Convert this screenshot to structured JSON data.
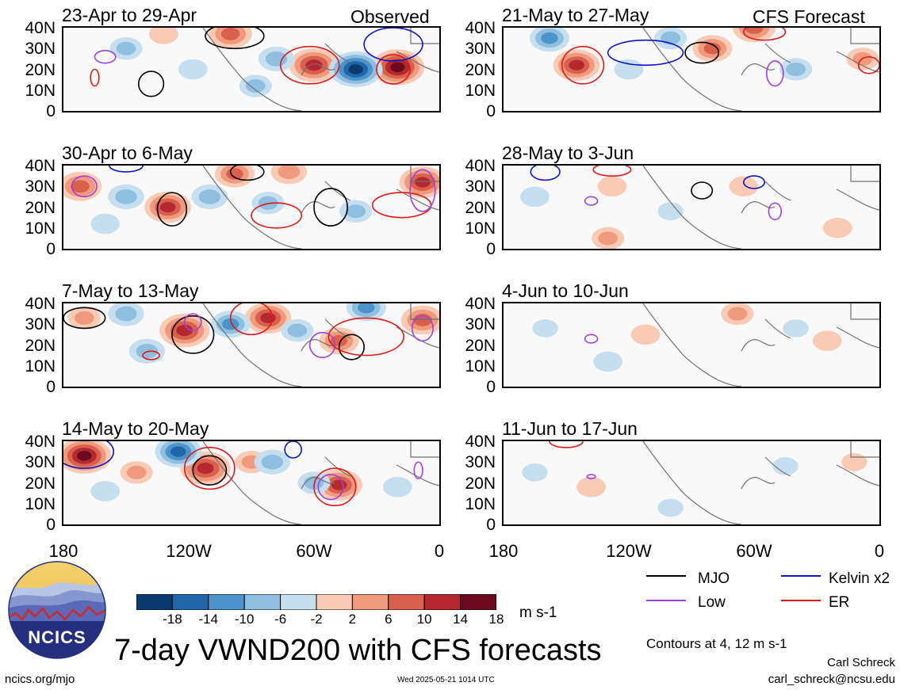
{
  "header": {
    "left_label": "Observed",
    "right_label": "CFS Forecast"
  },
  "colors": {
    "neg": [
      "#0b3a6e",
      "#1f66aa",
      "#4a94c9",
      "#8fbfdf",
      "#c6dff0"
    ],
    "pos": [
      "#f9cbb4",
      "#f09a7d",
      "#d9604c",
      "#b52830",
      "#6e0a1f"
    ],
    "mjo": "#000000",
    "kelvin": "#0a14c8",
    "low": "#a040e0",
    "er": "#e01818",
    "coast": "#707070"
  },
  "panels": [
    {
      "id": "p1",
      "title": "23-Apr to 29-Apr",
      "column": "observed",
      "blobs": [
        {
          "lon": -20,
          "lat": 21,
          "v": 18
        },
        {
          "lon": -60,
          "lat": 22,
          "v": 16
        },
        {
          "lon": -40,
          "lat": 20,
          "v": -18
        },
        {
          "lon": -100,
          "lat": 37,
          "v": 12
        },
        {
          "lon": -78,
          "lat": 25,
          "v": -8
        },
        {
          "lon": -150,
          "lat": 30,
          "v": -6
        },
        {
          "lon": -118,
          "lat": 20,
          "v": -4
        },
        {
          "lon": -88,
          "lat": 12,
          "v": -6
        },
        {
          "lon": -132,
          "lat": 37,
          "v": 4
        }
      ],
      "contours": [
        {
          "t": "mjo",
          "lon": -138,
          "lat": 13,
          "rx": 6,
          "ry": 6
        },
        {
          "t": "mjo",
          "lon": -98,
          "lat": 36,
          "rx": 14,
          "ry": 6
        },
        {
          "t": "er",
          "lon": -62,
          "lat": 22,
          "rx": 14,
          "ry": 9
        },
        {
          "t": "er",
          "lon": -22,
          "lat": 20,
          "rx": 8,
          "ry": 7
        },
        {
          "t": "low",
          "lon": -160,
          "lat": 26,
          "rx": 5,
          "ry": 3
        },
        {
          "t": "kelvin",
          "lon": -22,
          "lat": 32,
          "rx": 14,
          "ry": 8
        },
        {
          "t": "er",
          "lon": -165,
          "lat": 16,
          "rx": 2,
          "ry": 4
        }
      ]
    },
    {
      "id": "p2",
      "title": "30-Apr to 6-May",
      "column": "observed",
      "blobs": [
        {
          "lon": -172,
          "lat": 30,
          "v": 12
        },
        {
          "lon": -130,
          "lat": 20,
          "v": 14
        },
        {
          "lon": -98,
          "lat": 36,
          "v": 10
        },
        {
          "lon": -72,
          "lat": 37,
          "v": 8
        },
        {
          "lon": -8,
          "lat": 32,
          "v": 14
        },
        {
          "lon": -150,
          "lat": 25,
          "v": -8
        },
        {
          "lon": -110,
          "lat": 25,
          "v": -8
        },
        {
          "lon": -82,
          "lat": 22,
          "v": -6
        },
        {
          "lon": -40,
          "lat": 18,
          "v": -6
        },
        {
          "lon": -160,
          "lat": 12,
          "v": -4
        }
      ],
      "contours": [
        {
          "t": "low",
          "lon": -170,
          "lat": 30,
          "rx": 6,
          "ry": 5
        },
        {
          "t": "mjo",
          "lon": -128,
          "lat": 19,
          "rx": 7,
          "ry": 8
        },
        {
          "t": "er",
          "lon": -78,
          "lat": 16,
          "rx": 12,
          "ry": 6
        },
        {
          "t": "mjo",
          "lon": -52,
          "lat": 20,
          "rx": 8,
          "ry": 9
        },
        {
          "t": "er",
          "lon": -18,
          "lat": 21,
          "rx": 14,
          "ry": 6
        },
        {
          "t": "low",
          "lon": -8,
          "lat": 28,
          "rx": 6,
          "ry": 10
        },
        {
          "t": "mjo",
          "lon": -92,
          "lat": 37,
          "rx": 8,
          "ry": 4
        },
        {
          "t": "kelvin",
          "lon": -150,
          "lat": 40,
          "rx": 8,
          "ry": 3
        }
      ]
    },
    {
      "id": "p3",
      "title": "7-May to 13-May",
      "column": "observed",
      "blobs": [
        {
          "lon": -122,
          "lat": 27,
          "v": 16
        },
        {
          "lon": -82,
          "lat": 33,
          "v": 14
        },
        {
          "lon": -48,
          "lat": 22,
          "v": 10
        },
        {
          "lon": -8,
          "lat": 32,
          "v": 12
        },
        {
          "lon": -170,
          "lat": 33,
          "v": 6
        },
        {
          "lon": -150,
          "lat": 35,
          "v": -8
        },
        {
          "lon": -140,
          "lat": 17,
          "v": -8
        },
        {
          "lon": -100,
          "lat": 30,
          "v": -10
        },
        {
          "lon": -35,
          "lat": 38,
          "v": -10
        },
        {
          "lon": -68,
          "lat": 27,
          "v": -6
        }
      ],
      "contours": [
        {
          "t": "mjo",
          "lon": -118,
          "lat": 25,
          "rx": 10,
          "ry": 9
        },
        {
          "t": "er",
          "lon": -90,
          "lat": 33,
          "rx": 10,
          "ry": 8
        },
        {
          "t": "low",
          "lon": -56,
          "lat": 20,
          "rx": 6,
          "ry": 6
        },
        {
          "t": "mjo",
          "lon": -42,
          "lat": 19,
          "rx": 6,
          "ry": 6
        },
        {
          "t": "er",
          "lon": -35,
          "lat": 24,
          "rx": 18,
          "ry": 9
        },
        {
          "t": "low",
          "lon": -8,
          "lat": 28,
          "rx": 5,
          "ry": 6
        },
        {
          "t": "er",
          "lon": -138,
          "lat": 15,
          "rx": 4,
          "ry": 2
        },
        {
          "t": "low",
          "lon": -118,
          "lat": 31,
          "rx": 4,
          "ry": 4
        },
        {
          "t": "mjo",
          "lon": -170,
          "lat": 33,
          "rx": 10,
          "ry": 5
        }
      ]
    },
    {
      "id": "p4",
      "title": "14-May to 20-May",
      "column": "observed",
      "blobs": [
        {
          "lon": -170,
          "lat": 33,
          "v": 18
        },
        {
          "lon": -112,
          "lat": 27,
          "v": 16
        },
        {
          "lon": -48,
          "lat": 19,
          "v": 14
        },
        {
          "lon": -90,
          "lat": 30,
          "v": 6
        },
        {
          "lon": -145,
          "lat": 25,
          "v": 6
        },
        {
          "lon": -125,
          "lat": 35,
          "v": -14
        },
        {
          "lon": -80,
          "lat": 30,
          "v": -8
        },
        {
          "lon": -60,
          "lat": 20,
          "v": -6
        },
        {
          "lon": -160,
          "lat": 16,
          "v": -4
        },
        {
          "lon": -20,
          "lat": 18,
          "v": -4
        }
      ],
      "contours": [
        {
          "t": "mjo",
          "lon": -110,
          "lat": 26,
          "rx": 8,
          "ry": 7
        },
        {
          "t": "er",
          "lon": -110,
          "lat": 27,
          "rx": 12,
          "ry": 10
        },
        {
          "t": "er",
          "lon": -50,
          "lat": 18,
          "rx": 10,
          "ry": 9
        },
        {
          "t": "low",
          "lon": -52,
          "lat": 18,
          "rx": 6,
          "ry": 6
        },
        {
          "t": "kelvin",
          "lon": -170,
          "lat": 35,
          "rx": 14,
          "ry": 8
        },
        {
          "t": "kelvin",
          "lon": -70,
          "lat": 36,
          "rx": 4,
          "ry": 4
        },
        {
          "t": "low",
          "lon": -10,
          "lat": 26,
          "rx": 2,
          "ry": 4
        }
      ]
    },
    {
      "id": "p5",
      "title": "21-May to 27-May",
      "column": "forecast",
      "blobs": [
        {
          "lon": -145,
          "lat": 22,
          "v": 14
        },
        {
          "lon": -60,
          "lat": 40,
          "v": 12
        },
        {
          "lon": -8,
          "lat": 25,
          "v": 6
        },
        {
          "lon": -80,
          "lat": 30,
          "v": 10
        },
        {
          "lon": -158,
          "lat": 35,
          "v": -10
        },
        {
          "lon": -120,
          "lat": 20,
          "v": -4
        },
        {
          "lon": -40,
          "lat": 20,
          "v": -6
        },
        {
          "lon": -100,
          "lat": 35,
          "v": -6
        }
      ],
      "contours": [
        {
          "t": "er",
          "lon": -142,
          "lat": 22,
          "rx": 10,
          "ry": 9
        },
        {
          "t": "kelvin",
          "lon": -112,
          "lat": 28,
          "rx": 18,
          "ry": 6
        },
        {
          "t": "mjo",
          "lon": -85,
          "lat": 28,
          "rx": 8,
          "ry": 5
        },
        {
          "t": "low",
          "lon": -50,
          "lat": 18,
          "rx": 4,
          "ry": 6
        },
        {
          "t": "er",
          "lon": -55,
          "lat": 38,
          "rx": 10,
          "ry": 4
        },
        {
          "t": "er",
          "lon": -5,
          "lat": 22,
          "rx": 5,
          "ry": 4
        }
      ]
    },
    {
      "id": "p6",
      "title": "28-May to 3-Jun",
      "column": "forecast",
      "blobs": [
        {
          "lon": -130,
          "lat": 5,
          "v": 6
        },
        {
          "lon": -128,
          "lat": 30,
          "v": 4
        },
        {
          "lon": -65,
          "lat": 30,
          "v": 4
        },
        {
          "lon": -165,
          "lat": 25,
          "v": -4
        },
        {
          "lon": -20,
          "lat": 10,
          "v": 4
        },
        {
          "lon": -100,
          "lat": 18,
          "v": -2
        }
      ],
      "contours": [
        {
          "t": "kelvin",
          "lon": -160,
          "lat": 37,
          "rx": 7,
          "ry": 4
        },
        {
          "t": "er",
          "lon": -128,
          "lat": 38,
          "rx": 9,
          "ry": 3
        },
        {
          "t": "mjo",
          "lon": -85,
          "lat": 28,
          "rx": 5,
          "ry": 4
        },
        {
          "t": "low",
          "lon": -138,
          "lat": 23,
          "rx": 3,
          "ry": 2
        },
        {
          "t": "kelvin",
          "lon": -60,
          "lat": 32,
          "rx": 5,
          "ry": 3
        },
        {
          "t": "low",
          "lon": -50,
          "lat": 18,
          "rx": 3,
          "ry": 4
        }
      ]
    },
    {
      "id": "p7",
      "title": "4-Jun to 10-Jun",
      "column": "forecast",
      "blobs": [
        {
          "lon": -112,
          "lat": 25,
          "v": 4
        },
        {
          "lon": -68,
          "lat": 35,
          "v": 6
        },
        {
          "lon": -25,
          "lat": 22,
          "v": 4
        },
        {
          "lon": -160,
          "lat": 28,
          "v": -2
        },
        {
          "lon": -130,
          "lat": 12,
          "v": -4
        },
        {
          "lon": -40,
          "lat": 28,
          "v": -2
        }
      ],
      "contours": [
        {
          "t": "low",
          "lon": -138,
          "lat": 23,
          "rx": 3,
          "ry": 2
        }
      ]
    },
    {
      "id": "p8",
      "title": "11-Jun to 17-Jun",
      "column": "forecast",
      "blobs": [
        {
          "lon": -138,
          "lat": 18,
          "v": 4
        },
        {
          "lon": -45,
          "lat": 28,
          "v": -2
        },
        {
          "lon": -165,
          "lat": 25,
          "v": -2
        },
        {
          "lon": -12,
          "lat": 30,
          "v": 2
        },
        {
          "lon": -100,
          "lat": 8,
          "v": -2
        }
      ],
      "contours": [
        {
          "t": "er",
          "lon": -150,
          "lat": 40,
          "rx": 8,
          "ry": 3
        },
        {
          "t": "low",
          "lon": -138,
          "lat": 23,
          "rx": 2,
          "ry": 1
        }
      ]
    }
  ],
  "axes": {
    "y_ticks": [
      "40N",
      "30N",
      "20N",
      "10N",
      "0"
    ],
    "x_ticks": [
      "180",
      "120W",
      "60W",
      "0"
    ]
  },
  "colorbar": {
    "labels": [
      "-18",
      "-14",
      "-10",
      "-6",
      "-2",
      "2",
      "6",
      "10",
      "14",
      "18"
    ],
    "units": "m s-1"
  },
  "legend": {
    "items": [
      {
        "label": "MJO",
        "type": "mjo"
      },
      {
        "label": "Kelvin x2",
        "type": "kelvin"
      },
      {
        "label": "Low",
        "type": "low"
      },
      {
        "label": "ER",
        "type": "er"
      }
    ],
    "note": "Contours at 4, 12 m s-1"
  },
  "footer": {
    "title": "7-day VWND200 with CFS forecasts",
    "logo_text": "NCICS",
    "url": "ncics.org/mjo",
    "timestamp": "Wed 2025-05-21 1014 UTC",
    "author": "Carl Schreck",
    "email": "carl_schreck@ncsu.edu"
  }
}
